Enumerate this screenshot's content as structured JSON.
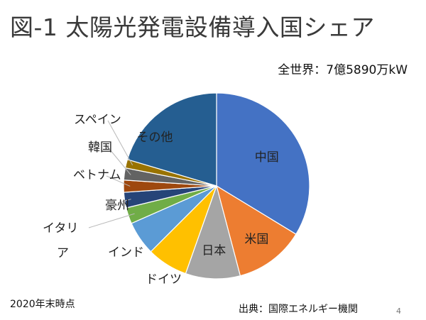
{
  "title": "図-1 太陽光発電設備導入国シェア",
  "total": "全世界：7億5890万kW",
  "note": "2020年末時点",
  "source": "出典：国際エネルギー機関",
  "page_number": "4",
  "chart_data": {
    "type": "pie",
    "title": "図-1 太陽光発電設備導入国シェア",
    "categories": [
      "中国",
      "米国",
      "日本",
      "ドイツ",
      "インド",
      "イタリア",
      "豪州",
      "ベトナム",
      "韓国",
      "スペイン",
      "その他"
    ],
    "values": [
      33.7,
      12.2,
      9.5,
      7.1,
      5.9,
      2.8,
      2.7,
      2.1,
      2.1,
      1.5,
      20.4
    ],
    "unit": "%",
    "colors": [
      "#4472C4",
      "#ED7D31",
      "#A5A5A5",
      "#FFC000",
      "#5B9BD5",
      "#70AD47",
      "#264478",
      "#9E480E",
      "#636363",
      "#997300",
      "#255E91"
    ]
  }
}
